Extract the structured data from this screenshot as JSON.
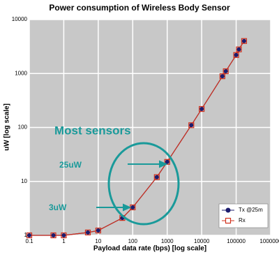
{
  "chart_data": {
    "type": "line",
    "title": "Power consumption of Wireless Body Sensor",
    "x_label": "Payload data rate (bps)   [log scale]",
    "y_label": "uW [log scale]",
    "xscale": "log",
    "yscale": "log",
    "xlim": [
      0.1,
      1000000
    ],
    "ylim": [
      1,
      10000
    ],
    "xticks": [
      0.1,
      1,
      10,
      100,
      1000,
      10000,
      100000,
      1000000
    ],
    "yticks": [
      1,
      10,
      100,
      1000,
      10000
    ],
    "grid": true,
    "legend": "lower right",
    "x": [
      0.1,
      0.5,
      1,
      5,
      10,
      50,
      100,
      500,
      1000,
      5000,
      10000,
      40000,
      50000,
      100000,
      120000,
      170000
    ],
    "series": [
      {
        "name": "Tx @25m",
        "color": "#1c1c6e",
        "marker": "circle",
        "values": [
          1,
          1,
          1,
          1.13,
          1.23,
          2.1,
          3.3,
          12,
          23,
          110,
          220,
          890,
          1100,
          2200,
          2800,
          4000
        ]
      },
      {
        "name": "Rx",
        "color": "#d0301c",
        "marker": "square",
        "values": [
          1,
          1,
          1,
          1.13,
          1.23,
          2.1,
          3.3,
          12,
          23,
          110,
          220,
          890,
          1100,
          2200,
          2800,
          4000
        ]
      }
    ],
    "annotations": [
      {
        "text": "Most sensors"
      },
      {
        "text": "25uW"
      },
      {
        "text": "3uW"
      }
    ]
  }
}
